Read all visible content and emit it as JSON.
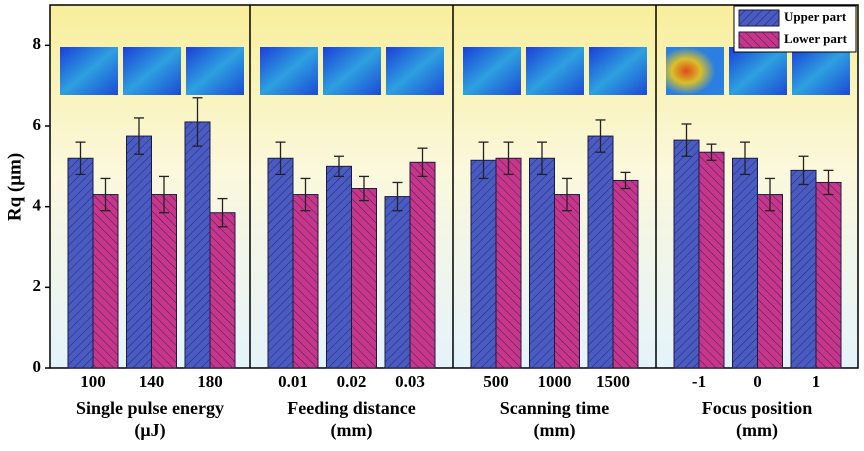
{
  "chart_data": [
    {
      "type": "bar",
      "ylabel": "Rq (μm)",
      "ylim": [
        0,
        9
      ],
      "yticks": [
        0,
        2,
        4,
        6,
        8
      ],
      "categories": [
        "100",
        "140",
        "180"
      ],
      "xlabel": [
        "Single pulse energy",
        "(μJ)"
      ],
      "series": [
        {
          "color": "#4a5cc4",
          "values": [
            5.2,
            5.75,
            6.1
          ],
          "errors": [
            0.4,
            0.45,
            0.6
          ]
        },
        {
          "color": "#c8368c",
          "values": [
            4.3,
            4.3,
            3.85
          ],
          "errors": [
            0.4,
            0.45,
            0.35
          ]
        }
      ]
    },
    {
      "type": "bar",
      "ylim": [
        0,
        9
      ],
      "categories": [
        "0.01",
        "0.02",
        "0.03"
      ],
      "xlabel": [
        "Feeding distance",
        "(mm)"
      ],
      "series": [
        {
          "color": "#4a5cc4",
          "values": [
            5.2,
            5.0,
            4.25
          ],
          "errors": [
            0.4,
            0.25,
            0.35
          ]
        },
        {
          "color": "#c8368c",
          "values": [
            4.3,
            4.45,
            5.1
          ],
          "errors": [
            0.4,
            0.3,
            0.35
          ]
        }
      ]
    },
    {
      "type": "bar",
      "ylim": [
        0,
        9
      ],
      "categories": [
        "500",
        "1000",
        "1500"
      ],
      "xlabel": [
        "Scanning time",
        "(mm)"
      ],
      "series": [
        {
          "color": "#4a5cc4",
          "values": [
            5.15,
            5.2,
            5.75
          ],
          "errors": [
            0.45,
            0.4,
            0.4
          ]
        },
        {
          "color": "#c8368c",
          "values": [
            5.2,
            4.3,
            4.65
          ],
          "errors": [
            0.4,
            0.4,
            0.2
          ]
        }
      ]
    },
    {
      "type": "bar",
      "ylim": [
        0,
        9
      ],
      "legend": "upper right",
      "categories": [
        "-1",
        "0",
        "1"
      ],
      "xlabel": [
        "Focus position",
        "(mm)"
      ],
      "series": [
        {
          "name": "Upper part",
          "color": "#4a5cc4",
          "values": [
            5.65,
            5.2,
            4.9
          ],
          "errors": [
            0.4,
            0.4,
            0.35
          ]
        },
        {
          "name": "Lower part",
          "color": "#c8368c",
          "values": [
            5.35,
            4.3,
            4.6
          ],
          "errors": [
            0.2,
            0.4,
            0.3
          ]
        }
      ]
    }
  ]
}
